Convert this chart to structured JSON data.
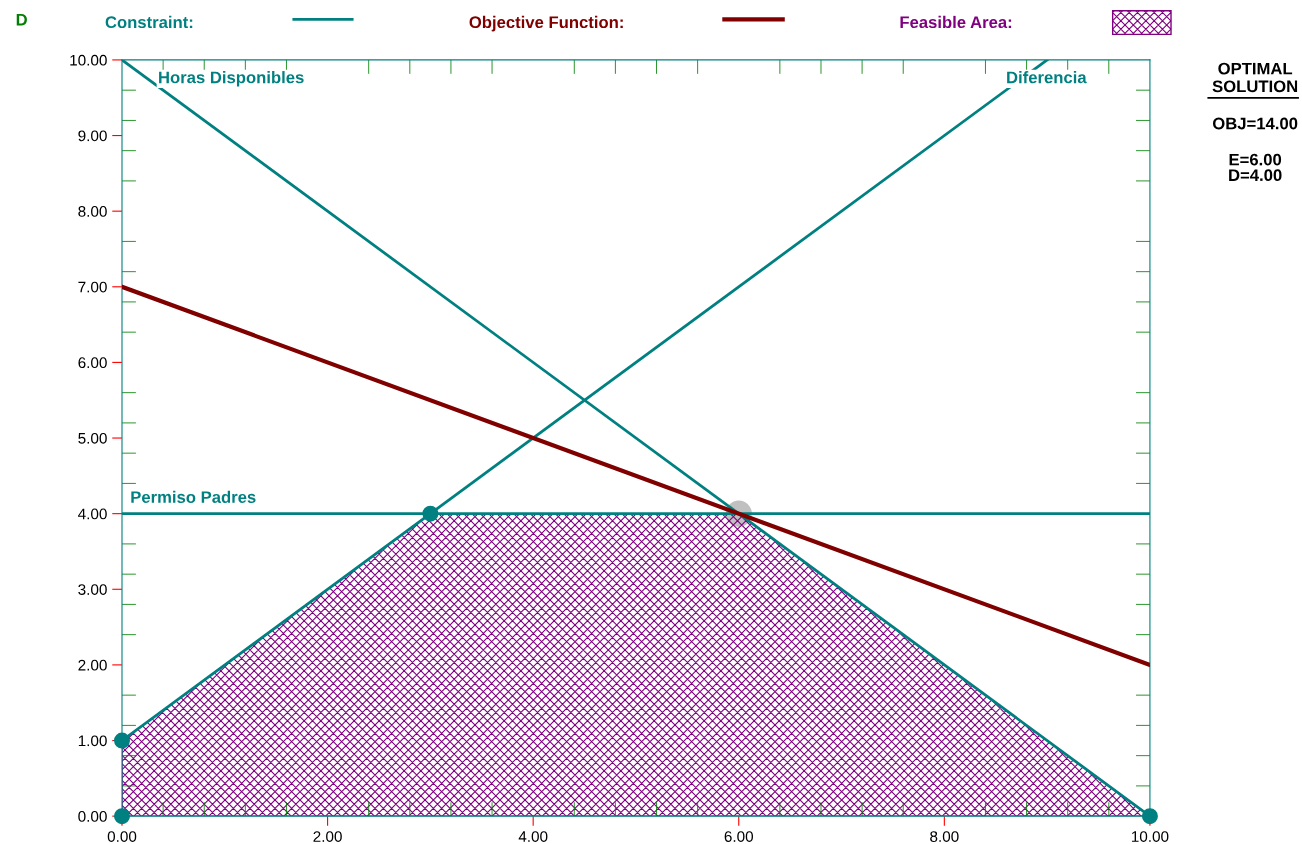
{
  "chart_data": {
    "type": "line",
    "ylabel": "D",
    "xlim": [
      0,
      10
    ],
    "ylim": [
      0,
      10
    ],
    "xticks": [
      {
        "value": 0,
        "label": "0.00"
      },
      {
        "value": 0.4,
        "label": null
      },
      {
        "value": 0.8,
        "label": null
      },
      {
        "value": 1.2,
        "label": null
      },
      {
        "value": 1.6,
        "label": null
      },
      {
        "value": 2,
        "label": "2.00"
      },
      {
        "value": 2.4,
        "label": null
      },
      {
        "value": 2.8,
        "label": null
      },
      {
        "value": 3.2,
        "label": null
      },
      {
        "value": 3.6,
        "label": null
      },
      {
        "value": 4,
        "label": "4.00"
      },
      {
        "value": 4.4,
        "label": null
      },
      {
        "value": 4.8,
        "label": null
      },
      {
        "value": 5.2,
        "label": null
      },
      {
        "value": 5.6,
        "label": null
      },
      {
        "value": 6,
        "label": "6.00"
      },
      {
        "value": 6.4,
        "label": null
      },
      {
        "value": 6.8,
        "label": null
      },
      {
        "value": 7.2,
        "label": null
      },
      {
        "value": 7.6,
        "label": null
      },
      {
        "value": 8,
        "label": "8.00"
      },
      {
        "value": 8.4,
        "label": null
      },
      {
        "value": 8.8,
        "label": null
      },
      {
        "value": 9.2,
        "label": null
      },
      {
        "value": 9.6,
        "label": null
      },
      {
        "value": 10,
        "label": "10.00"
      }
    ],
    "yticks": [
      {
        "value": 0,
        "label": "0.00"
      },
      {
        "value": 0.4,
        "label": null
      },
      {
        "value": 0.8,
        "label": null
      },
      {
        "value": 1,
        "label": "1.00"
      },
      {
        "value": 1.2,
        "label": null
      },
      {
        "value": 1.6,
        "label": null
      },
      {
        "value": 2,
        "label": "2.00"
      },
      {
        "value": 2.4,
        "label": null
      },
      {
        "value": 2.8,
        "label": null
      },
      {
        "value": 3,
        "label": "3.00"
      },
      {
        "value": 3.2,
        "label": null
      },
      {
        "value": 3.6,
        "label": null
      },
      {
        "value": 4,
        "label": "4.00"
      },
      {
        "value": 4.4,
        "label": null
      },
      {
        "value": 4.8,
        "label": null
      },
      {
        "value": 5,
        "label": "5.00"
      },
      {
        "value": 5.2,
        "label": null
      },
      {
        "value": 5.6,
        "label": null
      },
      {
        "value": 6,
        "label": "6.00"
      },
      {
        "value": 6.4,
        "label": null
      },
      {
        "value": 6.8,
        "label": null
      },
      {
        "value": 7,
        "label": "7.00"
      },
      {
        "value": 7.2,
        "label": null
      },
      {
        "value": 7.6,
        "label": null
      },
      {
        "value": 8,
        "label": "8.00"
      },
      {
        "value": 8.4,
        "label": null
      },
      {
        "value": 8.8,
        "label": null
      },
      {
        "value": 9,
        "label": "9.00"
      },
      {
        "value": 9.2,
        "label": null
      },
      {
        "value": 9.6,
        "label": null
      },
      {
        "value": 10,
        "label": "10.00"
      }
    ],
    "grid": false,
    "legend": "top",
    "line_style": "solid",
    "series": [
      {
        "type": "area",
        "name": "Feasible Area:",
        "color": "#800080",
        "x": [
          0,
          3,
          6,
          10
        ],
        "values": [
          1,
          4,
          4,
          0
        ]
      },
      {
        "name": "Constraint:",
        "color": "#008080",
        "x": [
          0,
          10
        ],
        "values": [
          10,
          0
        ]
      },
      {
        "color": "#008080",
        "x": [
          0,
          9
        ],
        "values": [
          1,
          10
        ]
      },
      {
        "color": "#008080",
        "x": [
          0,
          10
        ],
        "values": [
          4,
          4
        ]
      },
      {
        "name": "Objective Function:",
        "color": "#800000",
        "x": [
          0,
          10
        ],
        "values": [
          7,
          2
        ]
      },
      {
        "type": "scatter",
        "marker": "circle",
        "color": "#008080",
        "x": [
          0,
          0,
          3,
          10
        ],
        "values": [
          0,
          1,
          4,
          0
        ]
      },
      {
        "type": "scatter",
        "marker": "circle",
        "color": "#c0c0c0",
        "x": [
          6
        ],
        "values": [
          4
        ]
      }
    ],
    "annotations": [
      "Horas Disponibles",
      "Diferencia",
      "Permiso Padres",
      "OPTIMAL",
      "SOLUTION",
      "OBJ=14.00",
      "E=6.00\nD=4.00"
    ]
  }
}
